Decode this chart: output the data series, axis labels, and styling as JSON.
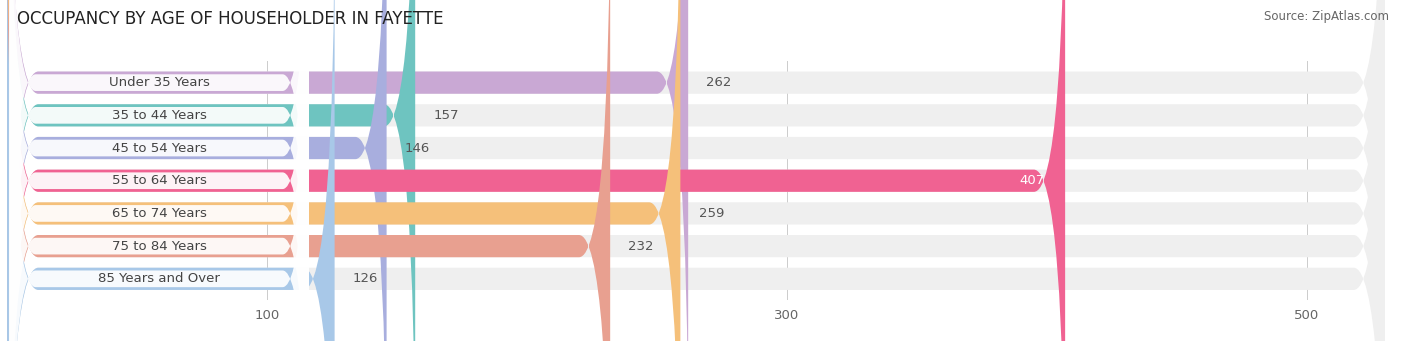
{
  "title": "OCCUPANCY BY AGE OF HOUSEHOLDER IN FAYETTE",
  "source": "Source: ZipAtlas.com",
  "categories": [
    "Under 35 Years",
    "35 to 44 Years",
    "45 to 54 Years",
    "55 to 64 Years",
    "65 to 74 Years",
    "75 to 84 Years",
    "85 Years and Over"
  ],
  "values": [
    262,
    157,
    146,
    407,
    259,
    232,
    126
  ],
  "bar_colors": [
    "#c9a8d4",
    "#6ec4c0",
    "#a8aede",
    "#f06292",
    "#f5c07a",
    "#e8a090",
    "#a8c8e8"
  ],
  "value_text_colors": [
    "#555555",
    "#555555",
    "#555555",
    "#ffffff",
    "#555555",
    "#555555",
    "#555555"
  ],
  "xlim": [
    0,
    530
  ],
  "xticks": [
    100,
    300,
    500
  ],
  "title_fontsize": 12,
  "label_fontsize": 9.5,
  "value_fontsize": 9.5,
  "bar_height": 0.68,
  "background_color": "#ffffff",
  "bar_bg_color": "#efefef",
  "grid_color": "#cccccc",
  "label_box_color": "#ffffff",
  "label_text_color": "#444444"
}
